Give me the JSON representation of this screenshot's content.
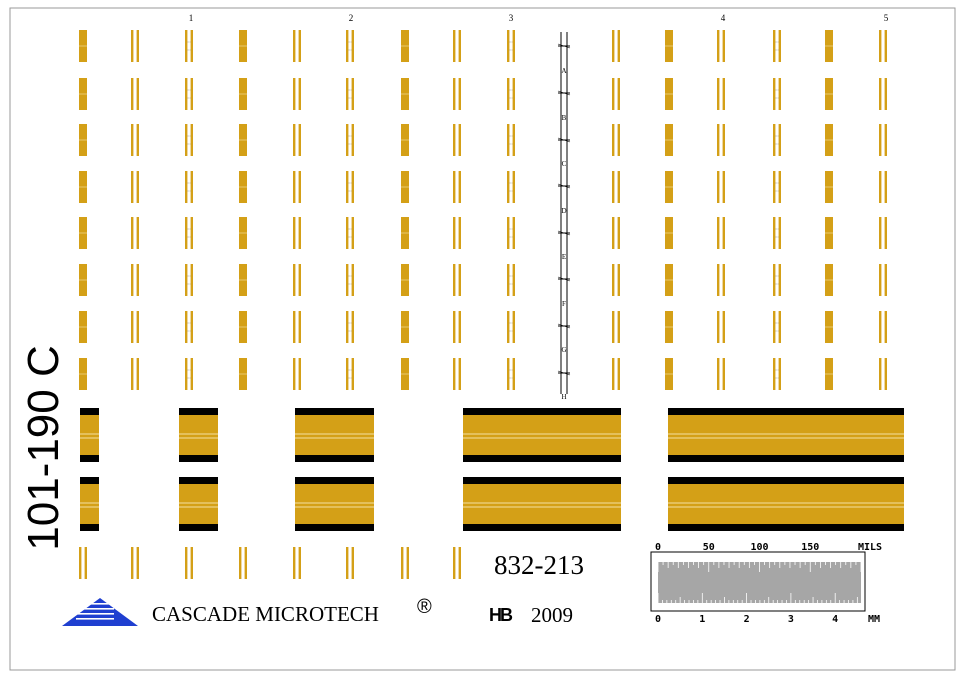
{
  "title": "101-190 C",
  "part_number": "832-213",
  "company": "CASCADE MICROTECH",
  "registered_mark": "®",
  "designer_initials": "HB",
  "year": "2009",
  "column_numbers": [
    "1",
    "2",
    "3",
    "4",
    "5"
  ],
  "row_letters": [
    "A",
    "B",
    "C",
    "D",
    "E",
    "F",
    "G",
    "H"
  ],
  "scale": {
    "mils_labels": [
      "0",
      "50",
      "100",
      "150"
    ],
    "mils_unit": "MILS",
    "mm_labels": [
      "0",
      "1",
      "2",
      "3",
      "4"
    ],
    "mm_unit": "MM"
  },
  "colors": {
    "gold": "#d4a017",
    "metal_dark": "#000000",
    "logo_blue": "#1f3fd0",
    "scale_gray": "#a6a6a6",
    "border": "#999999"
  }
}
